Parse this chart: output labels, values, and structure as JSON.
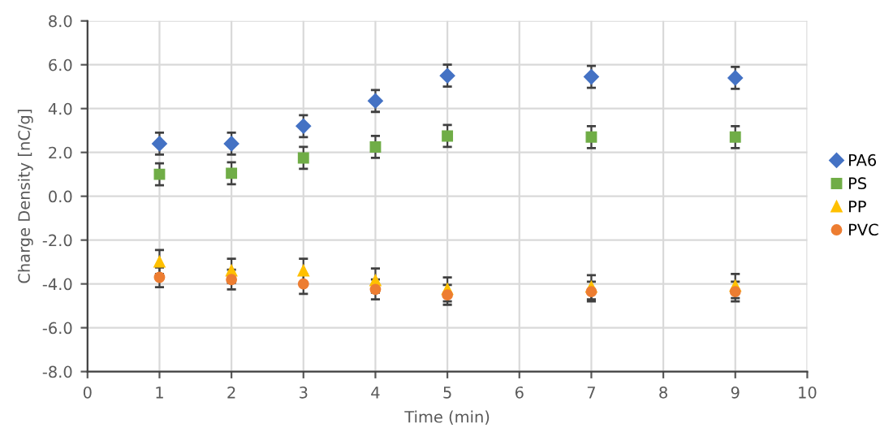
{
  "chart_data": {
    "type": "scatter",
    "xlabel": "Time (min)",
    "ylabel": "Charge Density [nC/g]",
    "x": [
      1,
      2,
      3,
      4,
      5,
      7,
      9
    ],
    "series": [
      {
        "name": "PA6",
        "color": "#4472c4",
        "marker": "diamond",
        "values": [
          2.4,
          2.4,
          3.2,
          4.35,
          5.5,
          5.45,
          5.4
        ],
        "errors": [
          0.5,
          0.5,
          0.5,
          0.5,
          0.5,
          0.5,
          0.5
        ]
      },
      {
        "name": "PS",
        "color": "#70ad47",
        "marker": "square",
        "values": [
          1.0,
          1.05,
          1.75,
          2.25,
          2.75,
          2.7,
          2.7
        ],
        "errors": [
          0.5,
          0.5,
          0.5,
          0.5,
          0.5,
          0.5,
          0.5
        ]
      },
      {
        "name": "PP",
        "color": "#ffc000",
        "marker": "triangle",
        "values": [
          -3.0,
          -3.4,
          -3.4,
          -3.85,
          -4.25,
          -4.15,
          -4.1
        ],
        "errors": [
          0.55,
          0.55,
          0.55,
          0.55,
          0.55,
          0.55,
          0.55
        ]
      },
      {
        "name": "PVC",
        "color": "#ed7d31",
        "marker": "circle",
        "values": [
          -3.7,
          -3.8,
          -4.0,
          -4.25,
          -4.5,
          -4.35,
          -4.35
        ],
        "errors": [
          0.45,
          0.45,
          0.45,
          0.45,
          0.45,
          0.45,
          0.45
        ]
      }
    ],
    "xlim": [
      0,
      10
    ],
    "xticks": [
      0,
      1,
      2,
      3,
      4,
      5,
      6,
      7,
      8,
      9,
      10
    ],
    "ylim": [
      -8,
      8
    ],
    "yticks": [
      {
        "value": -8,
        "label": "-8.0"
      },
      {
        "value": -6,
        "label": "-6.0"
      },
      {
        "value": -4,
        "label": "-4.0"
      },
      {
        "value": -2,
        "label": "-2.0"
      },
      {
        "value": 0,
        "label": "0.0"
      },
      {
        "value": 2,
        "label": "2.0"
      },
      {
        "value": 4,
        "label": "4.0"
      },
      {
        "value": 6,
        "label": "6.0"
      },
      {
        "value": 8,
        "label": "8.0"
      }
    ],
    "grid": true,
    "legend": "right"
  }
}
